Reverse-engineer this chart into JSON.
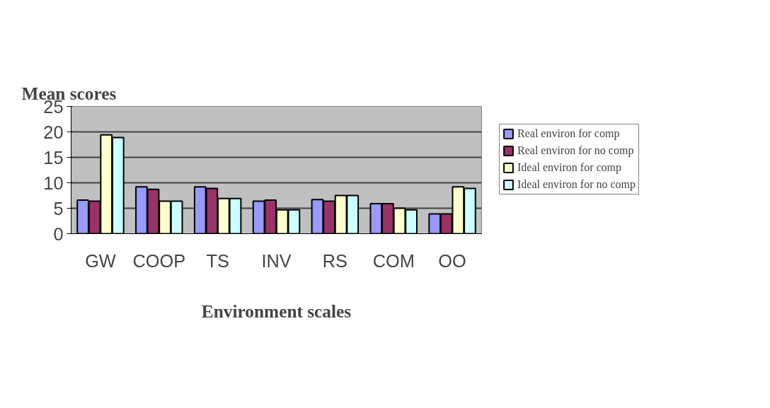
{
  "chart_data": {
    "type": "bar",
    "title": "Mean scores",
    "xlabel": "Environment scales",
    "categories": [
      "GW",
      "COOP",
      "TS",
      "INV",
      "RS",
      "COM",
      "OO"
    ],
    "series": [
      {
        "name": "Real environ for comp",
        "color": "#9999ff",
        "values": [
          6.6,
          9.2,
          9.2,
          6.4,
          6.7,
          5.9,
          3.9
        ]
      },
      {
        "name": "Real environ for no comp",
        "color": "#993366",
        "values": [
          6.4,
          8.7,
          8.9,
          6.6,
          6.4,
          5.9,
          3.9
        ]
      },
      {
        "name": "Ideal environ for comp",
        "color": "#ffffcc",
        "values": [
          19.4,
          6.4,
          6.9,
          4.7,
          7.5,
          5.0,
          9.2
        ]
      },
      {
        "name": "Ideal environ for no comp",
        "color": "#ccffff",
        "values": [
          18.9,
          6.4,
          6.9,
          4.7,
          7.5,
          4.7,
          8.9
        ]
      }
    ],
    "ylim": [
      0,
      25
    ],
    "yticks": [
      0,
      5,
      10,
      15,
      20,
      25
    ],
    "grid": "y",
    "legend": "right"
  }
}
